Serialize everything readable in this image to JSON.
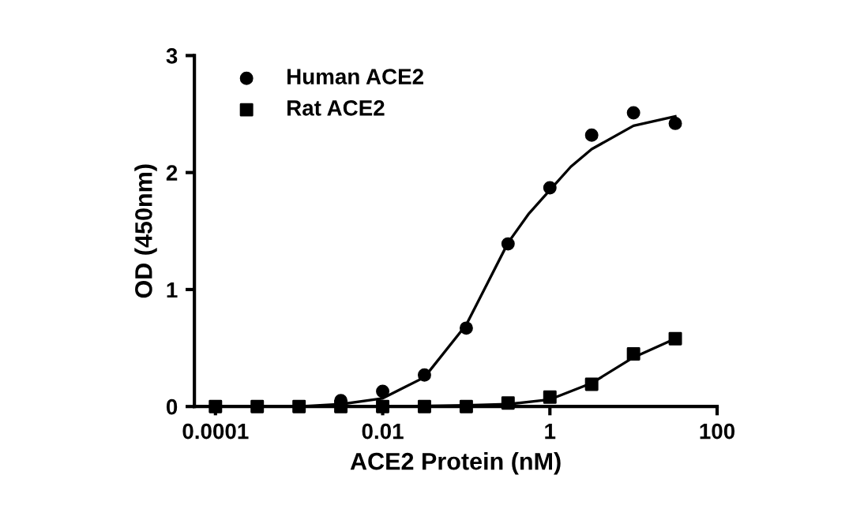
{
  "chart_data": {
    "type": "scatter",
    "xlabel": "ACE2 Protein (nM)",
    "ylabel": "OD (450nm)",
    "log": "x",
    "xlim": [
      5.6e-05,
      100
    ],
    "xticks": [
      {
        "value": 0.0001,
        "label": "0.0001"
      },
      {
        "value": 0.01,
        "label": "0.01"
      },
      {
        "value": 1,
        "label": "1"
      },
      {
        "value": 100,
        "label": "100"
      }
    ],
    "ylim": [
      0,
      3
    ],
    "yticks": [
      0,
      1,
      2,
      3
    ],
    "grid": false,
    "legend": "top left",
    "series": [
      {
        "name": "Human ACE2",
        "marker": "circle",
        "color": "#000000",
        "x": [
          0.00316,
          0.01,
          0.0316,
          0.1,
          0.316,
          1,
          3.16,
          10,
          31.6
        ],
        "values": [
          0.05,
          0.13,
          0.27,
          0.67,
          1.39,
          1.87,
          2.32,
          2.51,
          2.42
        ]
      },
      {
        "name": "Rat ACE2",
        "marker": "square",
        "color": "#000000",
        "x": [
          0.0001,
          0.000316,
          0.001,
          0.00316,
          0.01,
          0.0316,
          0.1,
          0.316,
          1,
          3.16,
          10,
          31.6
        ],
        "values": [
          0,
          0,
          0,
          0,
          0,
          0,
          0,
          0.03,
          0.08,
          0.19,
          0.45,
          0.58
        ]
      },
      {
        "type": "line",
        "color": "#000000",
        "x": [
          0.0001,
          0.001,
          0.00316,
          0.01,
          0.0316,
          0.1,
          0.178,
          0.316,
          0.562,
          1,
          1.78,
          3.16,
          10,
          31.6
        ],
        "values": [
          0,
          0,
          0.02,
          0.07,
          0.25,
          0.7,
          1.05,
          1.4,
          1.65,
          1.85,
          2.05,
          2.2,
          2.4,
          2.48
        ]
      },
      {
        "type": "line",
        "color": "#000000",
        "x": [
          0.0001,
          0.01,
          0.1,
          0.316,
          1,
          3.16,
          10,
          31.6
        ],
        "values": [
          0,
          0,
          0.01,
          0.02,
          0.06,
          0.2,
          0.42,
          0.58
        ]
      }
    ]
  }
}
